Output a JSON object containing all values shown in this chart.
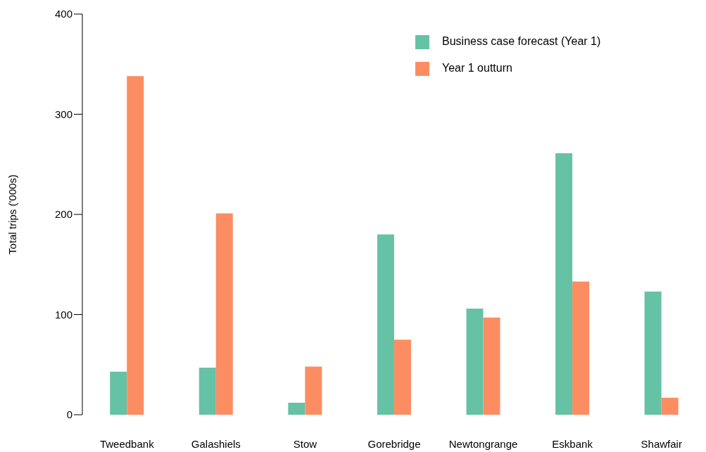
{
  "chart_data": {
    "type": "bar",
    "ylabel": "Total trips ('000s)",
    "categories": [
      "Tweedbank",
      "Galashiels",
      "Stow",
      "Gorebridge",
      "Newtongrange",
      "Eskbank",
      "Shawfair"
    ],
    "series": [
      {
        "name": "Business case forecast (Year 1)",
        "color": "#66c2a5",
        "values": [
          43,
          47,
          12,
          180,
          106,
          261,
          123
        ]
      },
      {
        "name": "Year 1 outturn",
        "color": "#fc8d62",
        "values": [
          338,
          201,
          48,
          75,
          97,
          133,
          17
        ]
      }
    ],
    "ylim": [
      0,
      400
    ],
    "yticks": [
      0,
      100,
      200,
      300,
      400
    ],
    "grid": false,
    "legend": "top right"
  }
}
